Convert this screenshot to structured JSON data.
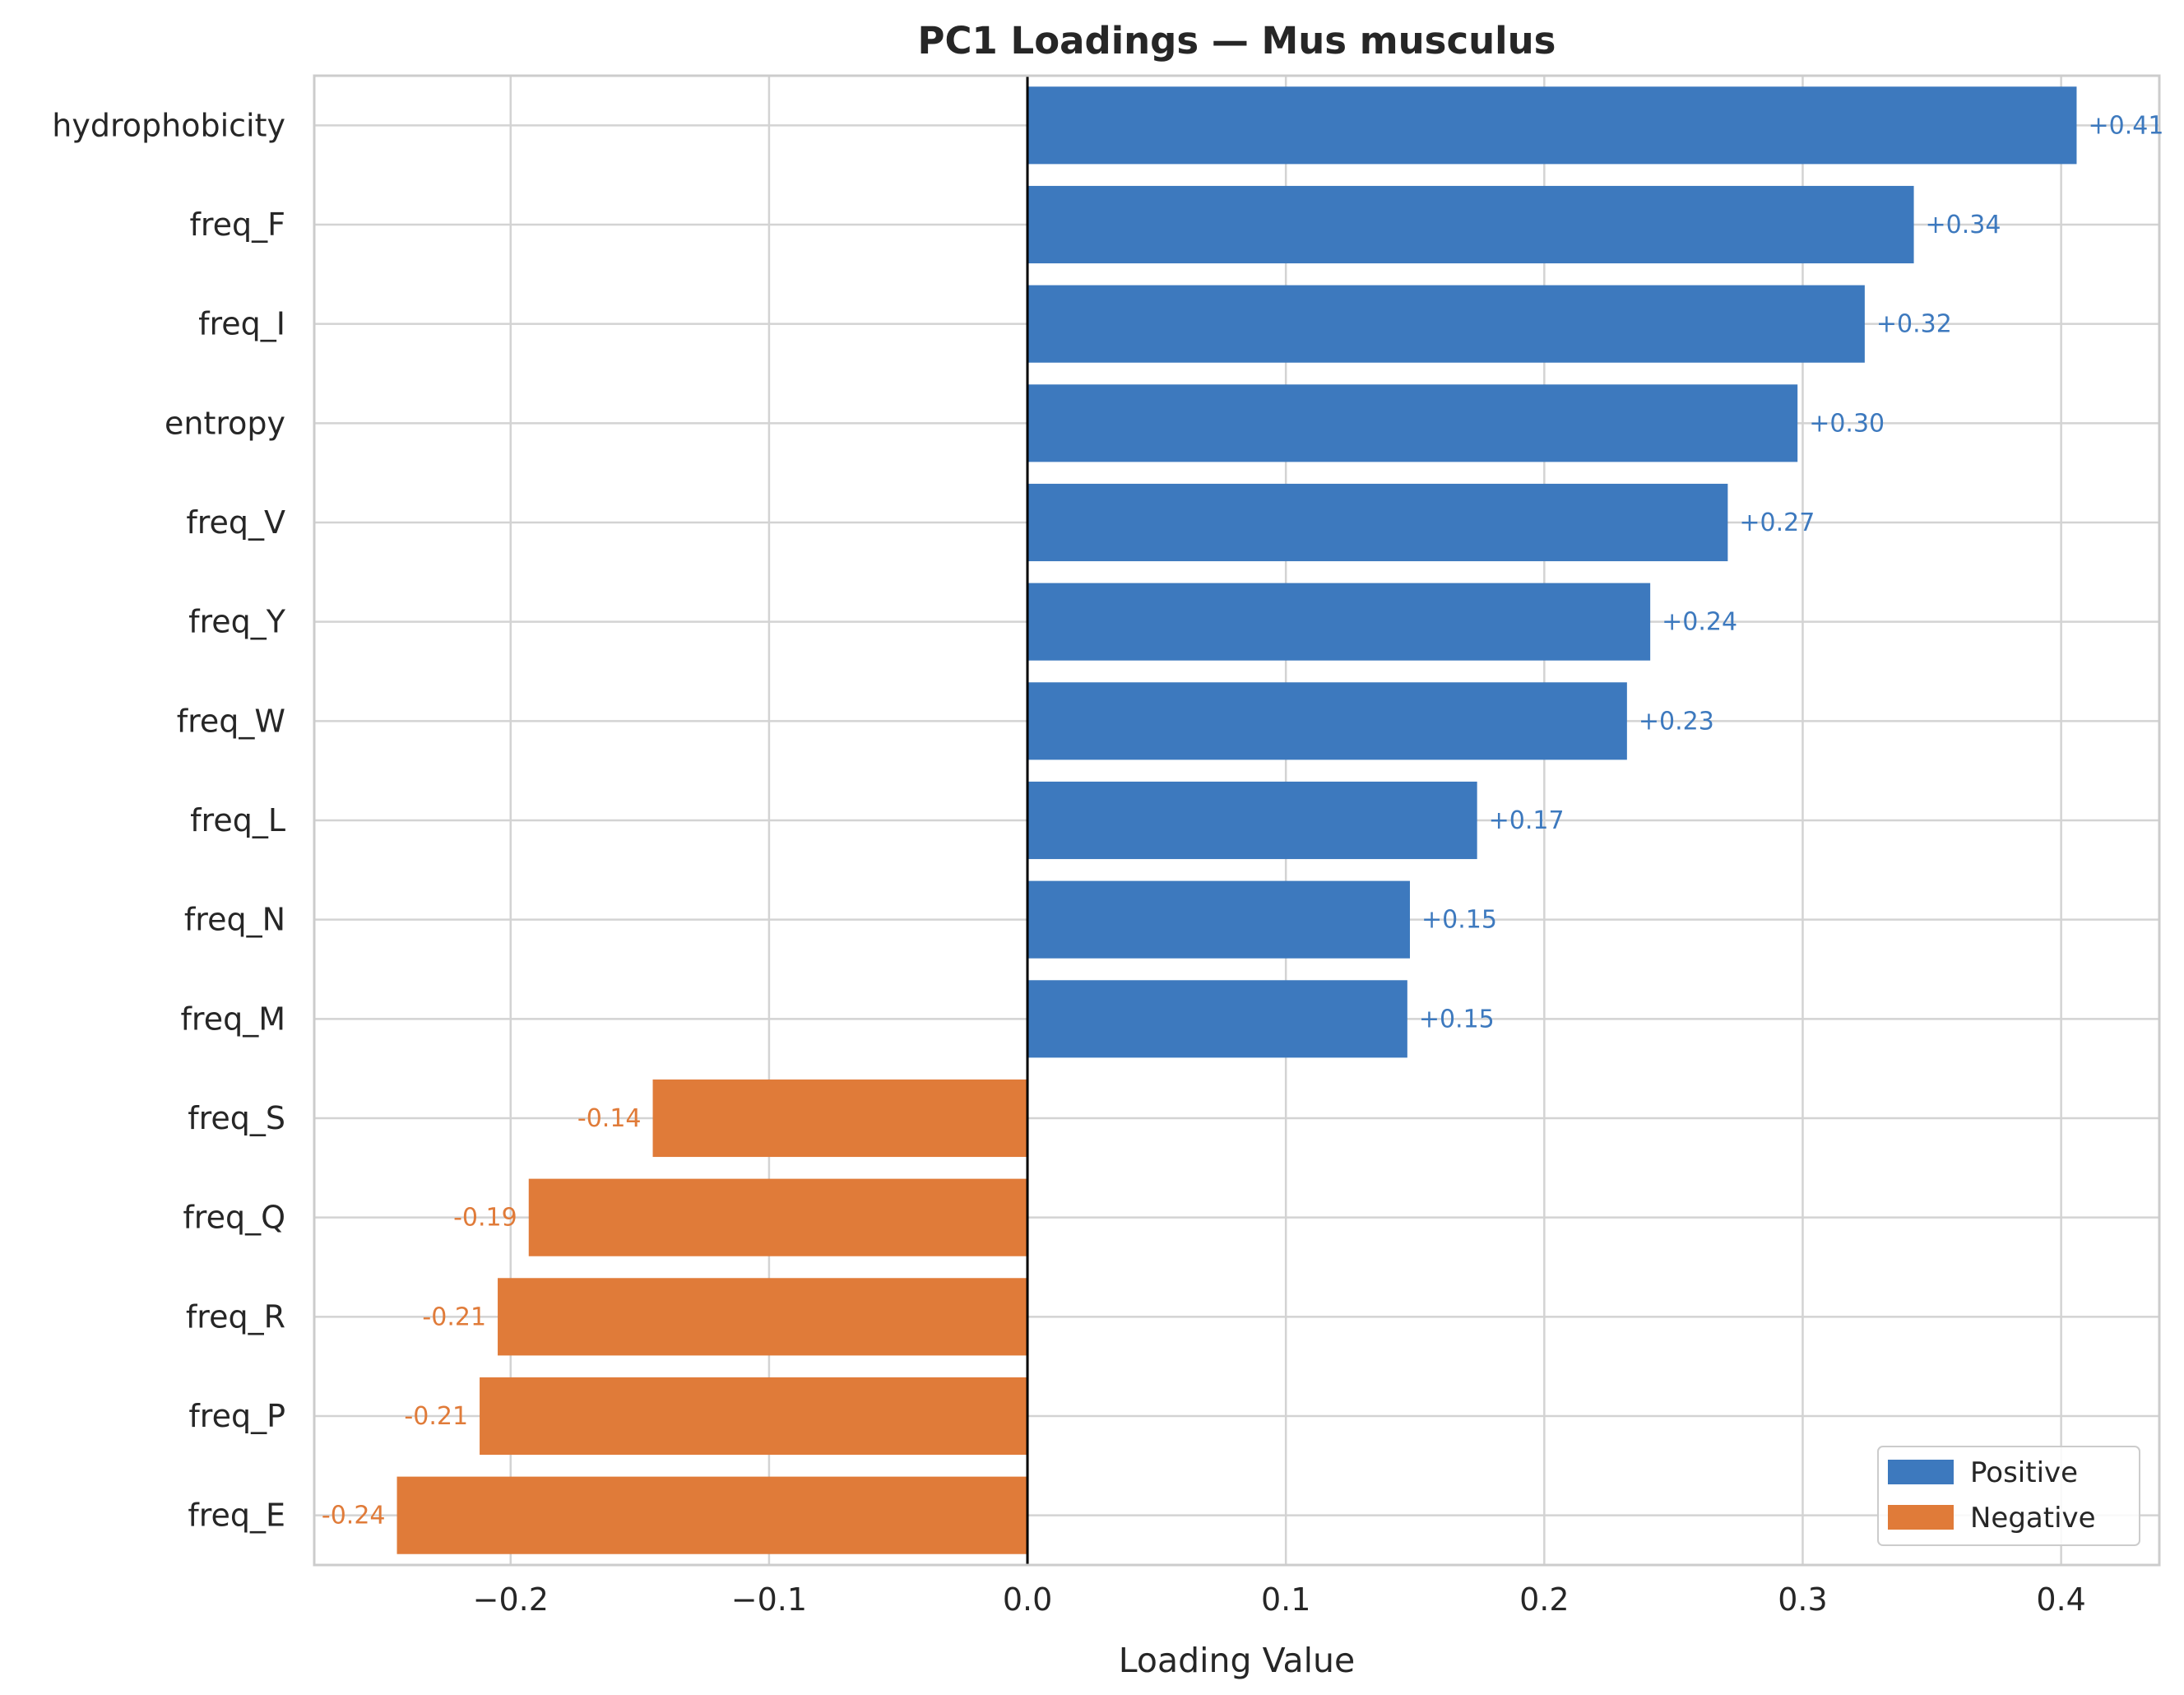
{
  "chart_data": {
    "type": "bar",
    "orientation": "horizontal",
    "title": "PC1 Loadings — Mus musculus",
    "xlabel": "Loading Value",
    "ylabel": "",
    "xlim": [
      -0.276,
      0.438
    ],
    "xticks": [
      -0.2,
      -0.1,
      0.0,
      0.1,
      0.2,
      0.3,
      0.4
    ],
    "xtick_labels": [
      "−0.2",
      "−0.1",
      "0.0",
      "0.1",
      "0.2",
      "0.3",
      "0.4"
    ],
    "grid": true,
    "categories": [
      "hydrophobicity",
      "freq_F",
      "freq_I",
      "entropy",
      "freq_V",
      "freq_Y",
      "freq_W",
      "freq_L",
      "freq_N",
      "freq_M",
      "freq_S",
      "freq_Q",
      "freq_R",
      "freq_P",
      "freq_E"
    ],
    "values": [
      0.406,
      0.343,
      0.324,
      0.298,
      0.271,
      0.241,
      0.232,
      0.174,
      0.148,
      0.147,
      -0.145,
      -0.193,
      -0.205,
      -0.212,
      -0.244
    ],
    "value_labels": [
      "+0.41",
      "+0.34",
      "+0.32",
      "+0.30",
      "+0.27",
      "+0.24",
      "+0.23",
      "+0.17",
      "+0.15",
      "+0.15",
      "-0.14",
      "-0.19",
      "-0.21",
      "-0.21",
      "-0.24"
    ],
    "colors": {
      "positive": "#3d79be",
      "negative": "#e07b39"
    },
    "legend": {
      "placement": "lower right",
      "entries": [
        {
          "label": "Positive",
          "color": "#3d79be"
        },
        {
          "label": "Negative",
          "color": "#e07b39"
        }
      ]
    }
  }
}
